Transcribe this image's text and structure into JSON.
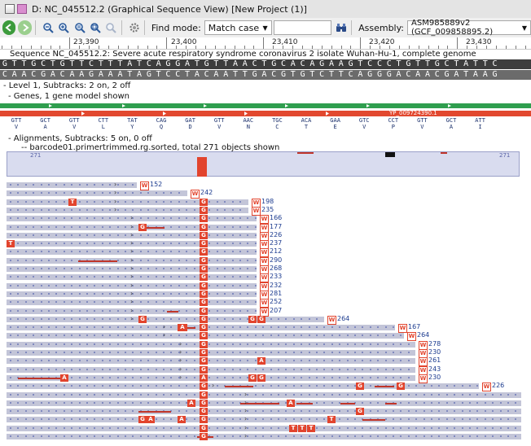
{
  "window": {
    "title": "D: NC_045512.2 (Graphical Sequence View) [New Project (1)]"
  },
  "toolbar": {
    "find_mode_label": "Find mode:",
    "find_mode_value": "Match case",
    "search_value": "",
    "assembly_label": "Assembly:",
    "assembly_value": "ASM985889v2 (GCF_009858895.2)"
  },
  "ruler": {
    "labels": [
      "23,390",
      "23,400",
      "23,410",
      "23,420",
      "23,430"
    ]
  },
  "sequence": {
    "description": "Sequence NC_045512.2: Severe acute respiratory syndrome coronavirus 2 isolate Wuhan-Hu-1, complete genome",
    "forward": "GTTGCTGTTCTTTATCAGGATGTTAACTGCACAGAAGTCCCTGTTGCTATTC",
    "reverse": "CAACGACAAGAAATAGTCCTACAATTGACGTGTCTTCAGGGACAACGATAAG"
  },
  "tracks": {
    "level": "- Level 1, Subtracks: 2 on, 2 off",
    "genes": "- Genes, 1 gene model shown",
    "gene_label": "YP_009724390.1",
    "alignments": "- Alignments, Subtracks: 5 on, 0 off",
    "sample": "-- barcode01.primertrimmed.rg.sorted, total 271 objects shown",
    "coverage_max": "271"
  },
  "codons": [
    {
      "codon": "GTT",
      "aa": "V"
    },
    {
      "codon": "GCT",
      "aa": "A"
    },
    {
      "codon": "GTT",
      "aa": "V"
    },
    {
      "codon": "CTT",
      "aa": "L"
    },
    {
      "codon": "TAT",
      "aa": "Y"
    },
    {
      "codon": "CAG",
      "aa": "Q"
    },
    {
      "codon": "GAT",
      "aa": "D"
    },
    {
      "codon": "GTT",
      "aa": "V"
    },
    {
      "codon": "AAC",
      "aa": "N"
    },
    {
      "codon": "TGC",
      "aa": "C"
    },
    {
      "codon": "ACA",
      "aa": "T"
    },
    {
      "codon": "GAA",
      "aa": "E"
    },
    {
      "codon": "GTC",
      "aa": "V"
    },
    {
      "codon": "CCT",
      "aa": "P"
    },
    {
      "codon": "GTT",
      "aa": "V"
    },
    {
      "codon": "GCT",
      "aa": "A"
    },
    {
      "codon": "ATT",
      "aa": "I"
    }
  ],
  "read_lengths": [
    "152",
    "242",
    "198",
    "235",
    "166",
    "177",
    "226",
    "237",
    "212",
    "290",
    "268",
    "233",
    "232",
    "281",
    "252",
    "207",
    "264",
    "167",
    "264",
    "278",
    "230",
    "261",
    "243",
    "230",
    "226"
  ]
}
